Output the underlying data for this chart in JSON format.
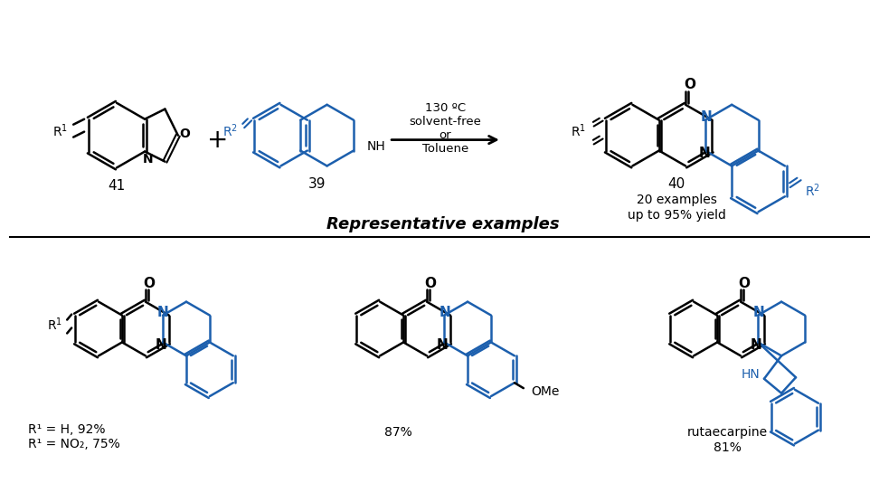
{
  "black": "#000000",
  "blue": "#1c5fad",
  "bg": "#ffffff",
  "arrow_text_line1": "130 ºC",
  "arrow_text_line2": "solvent-free",
  "arrow_text_line3": "or",
  "arrow_text_line4": "Toluene",
  "compound_41": "41",
  "compound_39": "39",
  "compound_40": "40",
  "note_line1": "20 examples",
  "note_line2": "up to 95% yield",
  "label1_line1": "R¹ = H, 92%",
  "label1_line2": "R¹ = NO₂, 75%",
  "label2": "87%",
  "label3": "rutaecarpine",
  "label4": "81%",
  "ome_label": "OMe",
  "rep_examples_text": "Representative examples"
}
